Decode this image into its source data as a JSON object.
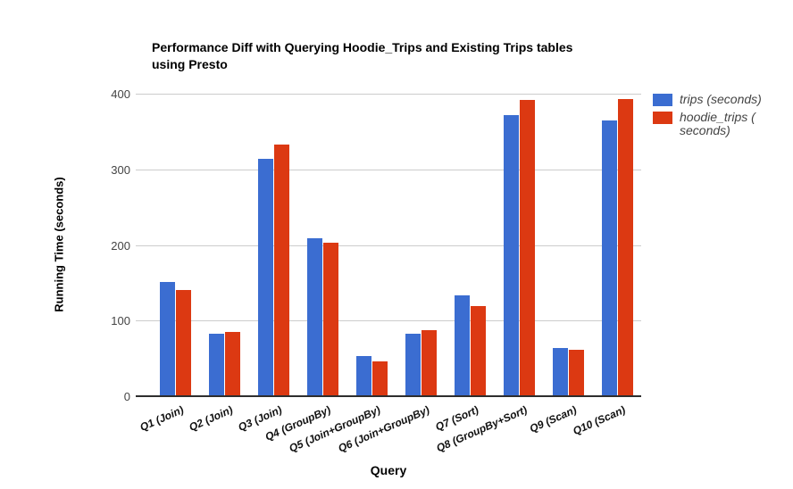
{
  "chart_data": {
    "type": "bar",
    "title": "Performance Diff with Querying Hoodie_Trips and Existing Trips tables using Presto",
    "title_lines": [
      "Performance Diff with Querying Hoodie_Trips and Existing Trips tables",
      "using Presto"
    ],
    "xlabel": "Query",
    "ylabel": "Running Time (seconds)",
    "ylim": [
      0,
      400
    ],
    "yticks": [
      0,
      100,
      200,
      300,
      400
    ],
    "grid": true,
    "legend_position": "right",
    "categories": [
      "Q1 (Join)",
      "Q2 (Join)",
      "Q3 (Join)",
      "Q4 (GroupBy)",
      "Q5 (Join+GroupBy)",
      "Q6 (Join+GroupBy)",
      "Q7 (Sort)",
      "Q8 (GroupBy+Sort)",
      "Q9 (Scan)",
      "Q10 (Scan)"
    ],
    "series": [
      {
        "name": "trips (seconds)",
        "slug": "trips",
        "color": "#3b6dd1",
        "values": [
          150,
          81,
          313,
          208,
          52,
          82,
          132,
          370,
          62,
          363
        ]
      },
      {
        "name": "hoodie_trips ( seconds)",
        "slug": "hoodie-trips",
        "color": "#dc3912",
        "values": [
          139,
          84,
          332,
          202,
          45,
          86,
          118,
          390,
          60,
          392
        ]
      }
    ],
    "colors": {
      "gridline": "#cccccc",
      "axis_line": "#2e2e2e",
      "title_text": "#000000",
      "tick_text": "#444444",
      "legend_text": "#434343"
    }
  }
}
